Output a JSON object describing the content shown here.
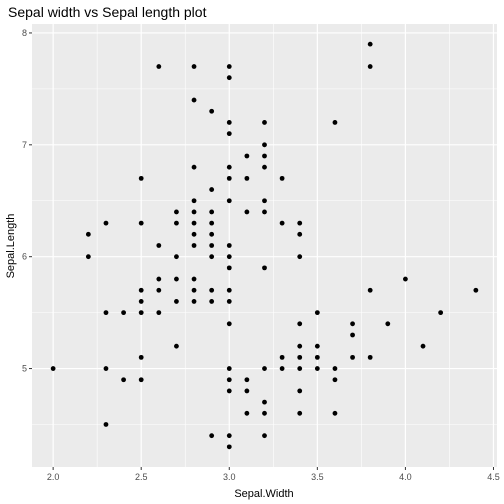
{
  "chart_data": {
    "type": "scatter",
    "title": "Sepal width vs Sepal length plot",
    "xlabel": "Sepal.Width",
    "ylabel": "Sepal.Length",
    "xlim": [
      1.88,
      4.52
    ],
    "ylim": [
      4.12,
      8.08
    ],
    "x_ticks": [
      "2.0",
      "2.5",
      "3.0",
      "3.5",
      "4.0",
      "4.5"
    ],
    "y_ticks": [
      "5",
      "6",
      "7",
      "8"
    ],
    "grid": true,
    "point_color": "#000000",
    "panel_color": "#ebebeb",
    "grid_color": "#ffffff",
    "points": [
      [
        2.0,
        5.0
      ],
      [
        2.2,
        6.0
      ],
      [
        2.2,
        6.2
      ],
      [
        2.3,
        4.5
      ],
      [
        2.3,
        5.0
      ],
      [
        2.3,
        5.5
      ],
      [
        2.3,
        6.3
      ],
      [
        2.4,
        4.9
      ],
      [
        2.4,
        5.5
      ],
      [
        2.5,
        4.9
      ],
      [
        2.5,
        5.1
      ],
      [
        2.5,
        5.5
      ],
      [
        2.5,
        5.6
      ],
      [
        2.5,
        5.7
      ],
      [
        2.5,
        6.3
      ],
      [
        2.5,
        6.7
      ],
      [
        2.6,
        5.5
      ],
      [
        2.6,
        5.7
      ],
      [
        2.6,
        5.8
      ],
      [
        2.6,
        6.1
      ],
      [
        2.6,
        7.7
      ],
      [
        2.7,
        5.2
      ],
      [
        2.7,
        5.6
      ],
      [
        2.7,
        5.8
      ],
      [
        2.7,
        6.0
      ],
      [
        2.7,
        6.3
      ],
      [
        2.7,
        6.4
      ],
      [
        2.8,
        5.6
      ],
      [
        2.8,
        5.7
      ],
      [
        2.8,
        5.8
      ],
      [
        2.8,
        6.1
      ],
      [
        2.8,
        6.2
      ],
      [
        2.8,
        6.3
      ],
      [
        2.8,
        6.4
      ],
      [
        2.8,
        6.5
      ],
      [
        2.8,
        6.8
      ],
      [
        2.8,
        7.4
      ],
      [
        2.8,
        7.7
      ],
      [
        2.9,
        4.4
      ],
      [
        2.9,
        5.6
      ],
      [
        2.9,
        5.7
      ],
      [
        2.9,
        6.0
      ],
      [
        2.9,
        6.1
      ],
      [
        2.9,
        6.2
      ],
      [
        2.9,
        6.3
      ],
      [
        2.9,
        6.4
      ],
      [
        2.9,
        6.6
      ],
      [
        2.9,
        7.3
      ],
      [
        3.0,
        4.3
      ],
      [
        3.0,
        4.4
      ],
      [
        3.0,
        4.8
      ],
      [
        3.0,
        4.9
      ],
      [
        3.0,
        5.0
      ],
      [
        3.0,
        5.4
      ],
      [
        3.0,
        5.6
      ],
      [
        3.0,
        5.7
      ],
      [
        3.0,
        5.9
      ],
      [
        3.0,
        6.0
      ],
      [
        3.0,
        6.1
      ],
      [
        3.0,
        6.5
      ],
      [
        3.0,
        6.7
      ],
      [
        3.0,
        6.8
      ],
      [
        3.0,
        7.1
      ],
      [
        3.0,
        7.2
      ],
      [
        3.0,
        7.6
      ],
      [
        3.0,
        7.7
      ],
      [
        3.1,
        4.6
      ],
      [
        3.1,
        4.8
      ],
      [
        3.1,
        4.9
      ],
      [
        3.1,
        6.4
      ],
      [
        3.1,
        6.7
      ],
      [
        3.1,
        6.9
      ],
      [
        3.2,
        4.4
      ],
      [
        3.2,
        4.6
      ],
      [
        3.2,
        4.7
      ],
      [
        3.2,
        5.0
      ],
      [
        3.2,
        5.9
      ],
      [
        3.2,
        6.4
      ],
      [
        3.2,
        6.5
      ],
      [
        3.2,
        6.8
      ],
      [
        3.2,
        6.9
      ],
      [
        3.2,
        7.0
      ],
      [
        3.2,
        7.2
      ],
      [
        3.3,
        5.0
      ],
      [
        3.3,
        5.1
      ],
      [
        3.3,
        6.3
      ],
      [
        3.3,
        6.7
      ],
      [
        3.4,
        4.6
      ],
      [
        3.4,
        4.8
      ],
      [
        3.4,
        5.0
      ],
      [
        3.4,
        5.1
      ],
      [
        3.4,
        5.2
      ],
      [
        3.4,
        5.4
      ],
      [
        3.4,
        6.0
      ],
      [
        3.4,
        6.2
      ],
      [
        3.4,
        6.3
      ],
      [
        3.5,
        5.0
      ],
      [
        3.5,
        5.1
      ],
      [
        3.5,
        5.2
      ],
      [
        3.5,
        5.5
      ],
      [
        3.6,
        4.6
      ],
      [
        3.6,
        4.9
      ],
      [
        3.6,
        5.0
      ],
      [
        3.6,
        7.2
      ],
      [
        3.7,
        5.1
      ],
      [
        3.7,
        5.3
      ],
      [
        3.7,
        5.4
      ],
      [
        3.8,
        5.1
      ],
      [
        3.8,
        5.7
      ],
      [
        3.8,
        7.7
      ],
      [
        3.8,
        7.9
      ],
      [
        3.9,
        5.4
      ],
      [
        4.0,
        5.8
      ],
      [
        4.1,
        5.2
      ],
      [
        4.2,
        5.5
      ],
      [
        4.4,
        5.7
      ]
    ]
  }
}
